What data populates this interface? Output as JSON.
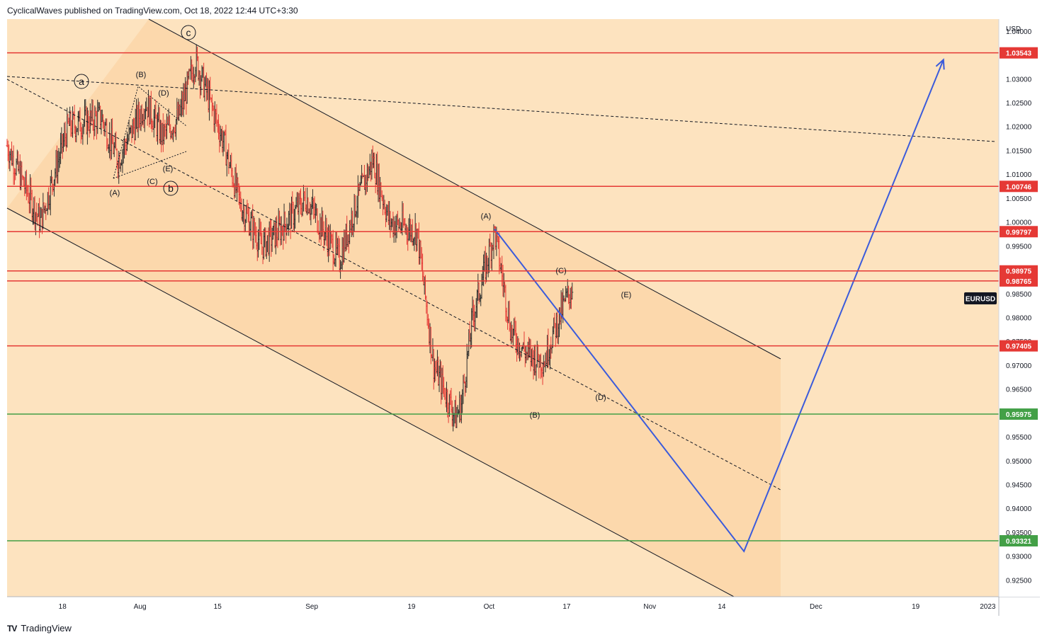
{
  "header": {
    "attribution": "CyclicalWaves published on TradingView.com, Oct 18, 2022 12:44 UTC+3:30"
  },
  "footer": {
    "brand": "TradingView",
    "logo": "TV"
  },
  "chart_data": {
    "type": "candlestick",
    "symbol": "EURUSD",
    "currency": "USD",
    "ylim": [
      0.9215,
      1.0425
    ],
    "x_tick_labels": [
      "18",
      "Aug",
      "15",
      "Sep",
      "19",
      "Oct",
      "17",
      "Nov",
      "14",
      "Dec",
      "19",
      "2023"
    ],
    "y_tick_labels": [
      "1.04000",
      "1.03000",
      "1.02500",
      "1.02000",
      "1.01500",
      "1.01000",
      "1.00500",
      "1.00000",
      "0.99500",
      "0.98500",
      "0.98000",
      "0.97500",
      "0.97000",
      "0.96500",
      "0.95500",
      "0.95000",
      "0.94500",
      "0.94000",
      "0.93500",
      "0.93000",
      "0.92500"
    ],
    "horizontal_levels": [
      {
        "value": "1.03543",
        "color": "#e53935"
      },
      {
        "value": "1.00746",
        "color": "#e53935"
      },
      {
        "value": "0.99797",
        "color": "#e53935"
      },
      {
        "value": "0.98975",
        "color": "#e53935"
      },
      {
        "value": "0.98765",
        "color": "#e53935"
      },
      {
        "value": "0.97405",
        "color": "#e53935"
      },
      {
        "value": "0.95975",
        "color": "#43a047"
      },
      {
        "value": "0.93321",
        "color": "#43a047"
      }
    ],
    "wave_labels": [
      "a",
      "(B)",
      "(D)",
      "(A)",
      "(C)",
      "(E)",
      "b",
      "c",
      "(A)",
      "(C)",
      "(E)",
      "(D)",
      "(B)"
    ],
    "projection_path": [
      {
        "date": "2022-10-04",
        "price": 0.9985
      },
      {
        "date": "2022-11-18",
        "price": 0.931
      },
      {
        "date": "2022-12-24",
        "price": 1.034
      }
    ],
    "colors": {
      "background": "#fde3bf",
      "channel_fill": "#fbcf9c",
      "up_candle": "#2d2d2d",
      "down_candle": "#e53935",
      "projection": "#3b5bdb"
    }
  }
}
